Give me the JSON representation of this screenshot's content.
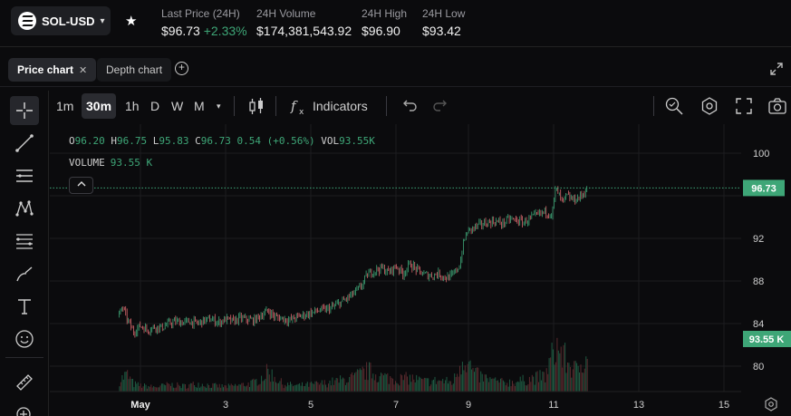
{
  "header": {
    "pair": "SOL-USD",
    "stats": [
      {
        "label": "Last Price (24H)",
        "value": "$96.73",
        "change": "+2.33%"
      },
      {
        "label": "24H Volume",
        "value": "$174,381,543.92"
      },
      {
        "label": "24H High",
        "value": "$96.90"
      },
      {
        "label": "24H Low",
        "value": "$93.42"
      }
    ]
  },
  "tabs": {
    "price": "Price chart",
    "depth": "Depth chart"
  },
  "toolbar": {
    "intervals": [
      "1m",
      "30m",
      "1h",
      "D",
      "W",
      "M"
    ],
    "selected_interval": "30m",
    "indicators": "Indicators"
  },
  "legend": {
    "o_label": "O",
    "o": "96.20",
    "h_label": "H",
    "h": "96.75",
    "l_label": "L",
    "l": "95.83",
    "c_label": "C",
    "c": "96.73",
    "change": "0.54 (+0.56%)",
    "vol_label": "VOL",
    "vol": "93.55K",
    "volume_label": "VOLUME",
    "volume": "93.55 K"
  },
  "colors": {
    "up": "#3ea677",
    "down": "#d9676d",
    "vol_up": "#1f5a42",
    "vol_down": "#5a2a2e",
    "background": "#0b0b0d",
    "grid": "#1c1c20"
  },
  "chart_data": {
    "type": "line",
    "y_ticks": [
      80,
      84,
      88,
      92,
      96,
      100
    ],
    "x_ticks": [
      "May",
      "3",
      "5",
      "7",
      "9",
      "11",
      "13",
      "15"
    ],
    "ylim": [
      78,
      101.5
    ],
    "price_label": "96.73",
    "volume_label": "93.55 K",
    "price_path": [
      [
        "Apr 30 12:00",
        84.8
      ],
      [
        "Apr 30 14:00",
        85.6
      ],
      [
        "Apr 30 16:00",
        84.6
      ],
      [
        "Apr 30 20:00",
        83.2
      ],
      [
        "May 1 00:00",
        83.8
      ],
      [
        "May 1 04:00",
        83.4
      ],
      [
        "May 1 08:00",
        83.7
      ],
      [
        "May 1 12:00",
        83.6
      ],
      [
        "May 1 16:00",
        84.0
      ],
      [
        "May 1 20:00",
        84.2
      ],
      [
        "May 2 00:00",
        84.1
      ],
      [
        "May 2 04:00",
        84.2
      ],
      [
        "May 2 08:00",
        84.0
      ],
      [
        "May 2 12:00",
        84.3
      ],
      [
        "May 2 16:00",
        84.4
      ],
      [
        "May 2 20:00",
        84.1
      ],
      [
        "May 3 00:00",
        84.4
      ],
      [
        "May 3 04:00",
        84.2
      ],
      [
        "May 3 08:00",
        84.5
      ],
      [
        "May 3 12:00",
        84.4
      ],
      [
        "May 3 16:00",
        84.3
      ],
      [
        "May 3 20:00",
        84.8
      ],
      [
        "May 4 00:00",
        85.2
      ],
      [
        "May 4 04:00",
        84.6
      ],
      [
        "May 4 08:00",
        84.5
      ],
      [
        "May 4 12:00",
        84.3
      ],
      [
        "May 4 16:00",
        84.6
      ],
      [
        "May 4 20:00",
        84.8
      ],
      [
        "May 5 00:00",
        85.0
      ],
      [
        "May 5 04:00",
        85.2
      ],
      [
        "May 5 08:00",
        85.3
      ],
      [
        "May 5 12:00",
        85.5
      ],
      [
        "May 5 16:00",
        85.9
      ],
      [
        "May 5 20:00",
        86.3
      ],
      [
        "May 6 00:00",
        86.8
      ],
      [
        "May 6 04:00",
        87.4
      ],
      [
        "May 6 08:00",
        88.6
      ],
      [
        "May 6 12:00",
        89.0
      ],
      [
        "May 6 16:00",
        89.2
      ],
      [
        "May 6 20:00",
        88.8
      ],
      [
        "May 7 00:00",
        89.4
      ],
      [
        "May 7 04:00",
        88.7
      ],
      [
        "May 7 08:00",
        89.6
      ],
      [
        "May 7 12:00",
        89.0
      ],
      [
        "May 7 16:00",
        88.6
      ],
      [
        "May 7 20:00",
        88.5
      ],
      [
        "May 8 00:00",
        88.7
      ],
      [
        "May 8 04:00",
        88.3
      ],
      [
        "May 8 08:00",
        88.5
      ],
      [
        "May 8 12:00",
        89.5
      ],
      [
        "May 8 14:00",
        91.5
      ],
      [
        "May 8 16:00",
        92.6
      ],
      [
        "May 8 20:00",
        93.0
      ],
      [
        "May 9 00:00",
        93.3
      ],
      [
        "May 9 04:00",
        93.5
      ],
      [
        "May 9 08:00",
        93.6
      ],
      [
        "May 9 12:00",
        93.4
      ],
      [
        "May 9 16:00",
        93.8
      ],
      [
        "May 9 20:00",
        93.7
      ],
      [
        "May 10 00:00",
        93.5
      ],
      [
        "May 10 04:00",
        93.9
      ],
      [
        "May 10 08:00",
        94.2
      ],
      [
        "May 10 12:00",
        94.5
      ],
      [
        "May 10 16:00",
        94.3
      ],
      [
        "May 10 18:00",
        96.7
      ],
      [
        "May 10 22:00",
        95.3
      ],
      [
        "May 11 00:00",
        96.0
      ],
      [
        "May 11 04:00",
        95.6
      ],
      [
        "May 11 08:00",
        95.9
      ],
      [
        "May 11 12:00",
        96.73
      ]
    ],
    "volume_axis_max": 100,
    "volume_path": [
      [
        "Apr 30 12:00",
        22
      ],
      [
        "Apr 30 16:00",
        35
      ],
      [
        "Apr 30 20:00",
        15
      ],
      [
        "May 1 00:00",
        12
      ],
      [
        "May 1 08:00",
        9
      ],
      [
        "May 1 16:00",
        14
      ],
      [
        "May 2 00:00",
        11
      ],
      [
        "May 2 08:00",
        16
      ],
      [
        "May 2 16:00",
        12
      ],
      [
        "May 3 00:00",
        10
      ],
      [
        "May 3 08:00",
        13
      ],
      [
        "May 3 16:00",
        18
      ],
      [
        "May 4 00:00",
        40
      ],
      [
        "May 4 08:00",
        15
      ],
      [
        "May 4 16:00",
        12
      ],
      [
        "May 5 00:00",
        14
      ],
      [
        "May 5 08:00",
        17
      ],
      [
        "May 5 16:00",
        22
      ],
      [
        "May 6 00:00",
        28
      ],
      [
        "May 6 08:00",
        42
      ],
      [
        "May 6 16:00",
        30
      ],
      [
        "May 7 00:00",
        25
      ],
      [
        "May 7 08:00",
        27
      ],
      [
        "May 7 16:00",
        20
      ],
      [
        "May 8 00:00",
        22
      ],
      [
        "May 8 08:00",
        19
      ],
      [
        "May 8 14:00",
        74
      ],
      [
        "May 8 20:00",
        35
      ],
      [
        "May 9 04:00",
        24
      ],
      [
        "May 9 12:00",
        18
      ],
      [
        "May 9 20:00",
        20
      ],
      [
        "May 10 04:00",
        26
      ],
      [
        "May 10 12:00",
        31
      ],
      [
        "May 10 18:00",
        93.55
      ],
      [
        "May 11 00:00",
        60
      ],
      [
        "May 11 06:00",
        40
      ],
      [
        "May 11 12:00",
        93.55
      ]
    ]
  }
}
